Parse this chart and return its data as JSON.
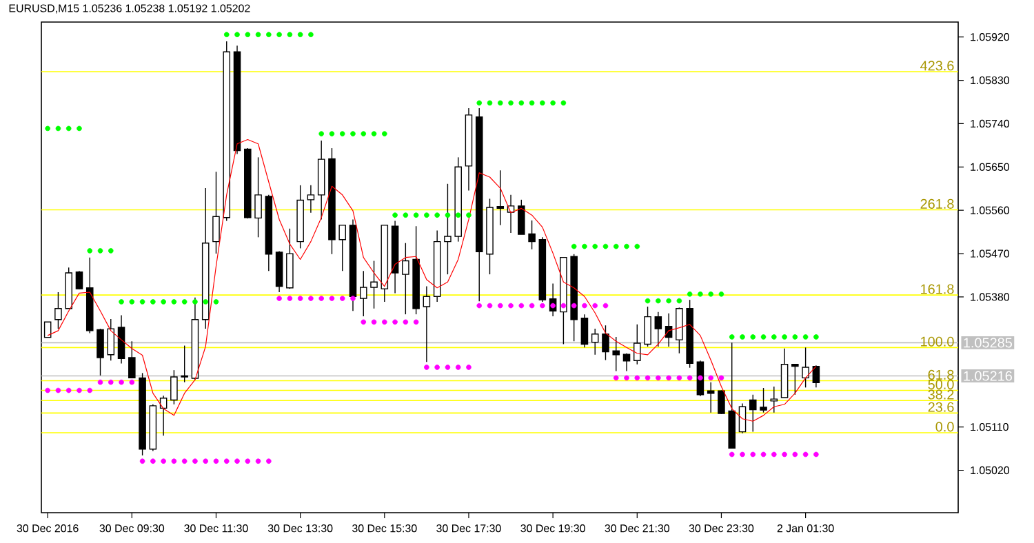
{
  "chart_data": {
    "type": "candlestick",
    "title": "EURUSD,M15 1.05236 1.05238 1.05192 1.05202",
    "categories": [
      "30 Dec 2016",
      null,
      null,
      null,
      null,
      null,
      null,
      null,
      "30 Dec 09:30",
      null,
      null,
      null,
      null,
      null,
      null,
      null,
      "30 Dec 11:30",
      null,
      null,
      null,
      null,
      null,
      null,
      null,
      "30 Dec 13:30",
      null,
      null,
      null,
      null,
      null,
      null,
      null,
      "30 Dec 15:30",
      null,
      null,
      null,
      null,
      null,
      null,
      null,
      "30 Dec 17:30",
      null,
      null,
      null,
      null,
      null,
      null,
      null,
      "30 Dec 19:30",
      null,
      null,
      null,
      null,
      null,
      null,
      null,
      "30 Dec 21:30",
      null,
      null,
      null,
      null,
      null,
      null,
      null,
      "30 Dec 23:30",
      null,
      null,
      null,
      null,
      null,
      null,
      null,
      "2 Jan 01:30",
      null
    ],
    "ohlc": [
      [
        1.05296,
        1.05328,
        1.05296,
        1.05328
      ],
      [
        1.05333,
        1.0539,
        1.05314,
        1.05356
      ],
      [
        1.05356,
        1.05441,
        1.05356,
        1.0543
      ],
      [
        1.05432,
        1.05434,
        1.05396,
        1.05397
      ],
      [
        1.05399,
        1.05462,
        1.05305,
        1.0531
      ],
      [
        1.05312,
        1.05314,
        1.05217,
        1.05254
      ],
      [
        1.0526,
        1.05334,
        1.05248,
        1.05314
      ],
      [
        1.05317,
        1.05342,
        1.05242,
        1.05252
      ],
      [
        1.05254,
        1.05288,
        1.05211,
        1.05212
      ],
      [
        1.05212,
        1.05222,
        1.05051,
        1.05064
      ],
      [
        1.05064,
        1.05157,
        1.0506,
        1.05154
      ],
      [
        1.05149,
        1.05175,
        1.05092,
        1.0517
      ],
      [
        1.05166,
        1.05228,
        1.05157,
        1.05214
      ],
      [
        1.05214,
        1.05279,
        1.05203,
        1.05216
      ],
      [
        1.05211,
        1.05379,
        1.05208,
        1.05333
      ],
      [
        1.05333,
        1.05606,
        1.05314,
        1.05492
      ],
      [
        1.05495,
        1.0564,
        1.0547,
        1.05547
      ],
      [
        1.05545,
        1.05911,
        1.05538,
        1.05889
      ],
      [
        1.05889,
        1.05902,
        1.05677,
        1.05684
      ],
      [
        1.05687,
        1.05689,
        1.05543,
        1.05545
      ],
      [
        1.05544,
        1.0567,
        1.05504,
        1.05592
      ],
      [
        1.05589,
        1.05592,
        1.05434,
        1.05469
      ],
      [
        1.05473,
        1.05475,
        1.0539,
        1.05402
      ],
      [
        1.05399,
        1.05522,
        1.05397,
        1.0547
      ],
      [
        1.05495,
        1.05612,
        1.05481,
        1.05581
      ],
      [
        1.05582,
        1.05612,
        1.05555,
        1.05592
      ],
      [
        1.05592,
        1.05705,
        1.05541,
        1.05666
      ],
      [
        1.05667,
        1.05689,
        1.05469,
        1.05499
      ],
      [
        1.05499,
        1.05529,
        1.05434,
        1.05529
      ],
      [
        1.05529,
        1.05541,
        1.05351,
        1.05381
      ],
      [
        1.05377,
        1.05434,
        1.0534,
        1.054
      ],
      [
        1.054,
        1.05455,
        1.05356,
        1.05411
      ],
      [
        1.05397,
        1.05529,
        1.0537,
        1.05529
      ],
      [
        1.05527,
        1.05538,
        1.05388,
        1.0543
      ],
      [
        1.05427,
        1.05492,
        1.05344,
        1.05455
      ],
      [
        1.05458,
        1.05527,
        1.05344,
        1.05356
      ],
      [
        1.0536,
        1.05402,
        1.05245,
        1.05381
      ],
      [
        1.05381,
        1.05518,
        1.0537,
        1.05495
      ],
      [
        1.05495,
        1.05615,
        1.05427,
        1.05506
      ],
      [
        1.05506,
        1.0567,
        1.05495,
        1.0565
      ],
      [
        1.05652,
        1.05772,
        1.05601,
        1.05758
      ],
      [
        1.05754,
        1.05772,
        1.05371,
        1.05474
      ],
      [
        1.05469,
        1.05584,
        1.05427,
        1.05566
      ],
      [
        1.05568,
        1.05643,
        1.05529,
        1.05564
      ],
      [
        1.05556,
        1.05592,
        1.05513,
        1.05569
      ],
      [
        1.05569,
        1.05582,
        1.0551,
        1.0551
      ],
      [
        1.05511,
        1.05539,
        1.05479,
        1.05495
      ],
      [
        1.05499,
        1.05504,
        1.0537,
        1.05374
      ],
      [
        1.05376,
        1.05408,
        1.0534,
        1.05351
      ],
      [
        1.05349,
        1.05462,
        1.05282,
        1.05462
      ],
      [
        1.05464,
        1.05469,
        1.05288,
        1.05333
      ],
      [
        1.05336,
        1.05344,
        1.05275,
        1.05282
      ],
      [
        1.05286,
        1.05314,
        1.0526,
        1.05303
      ],
      [
        1.05303,
        1.05321,
        1.05249,
        1.05266
      ],
      [
        1.05268,
        1.05297,
        1.05226,
        1.0526
      ],
      [
        1.05261,
        1.05263,
        1.05226,
        1.05247
      ],
      [
        1.05248,
        1.05323,
        1.0524,
        1.05284
      ],
      [
        1.05282,
        1.0536,
        1.05277,
        1.05339
      ],
      [
        1.05339,
        1.05349,
        1.05277,
        1.05314
      ],
      [
        1.05319,
        1.05346,
        1.05277,
        1.05296
      ],
      [
        1.05291,
        1.05358,
        1.05263,
        1.05356
      ],
      [
        1.05356,
        1.05374,
        1.05233,
        1.05242
      ],
      [
        1.05245,
        1.05248,
        1.05174,
        1.05177
      ],
      [
        1.05185,
        1.05203,
        1.0514,
        1.0518
      ],
      [
        1.05185,
        1.05186,
        1.05137,
        1.05138
      ],
      [
        1.05143,
        1.05285,
        1.05066,
        1.05066
      ],
      [
        1.051,
        1.05159,
        1.05097,
        1.05152
      ],
      [
        1.05166,
        1.05177,
        1.051,
        1.05146
      ],
      [
        1.05151,
        1.05191,
        1.0514,
        1.05145
      ],
      [
        1.05164,
        1.05194,
        1.0514,
        1.05168
      ],
      [
        1.05171,
        1.05273,
        1.05171,
        1.0524
      ],
      [
        1.0524,
        1.05241,
        1.05177,
        1.05236
      ],
      [
        1.05212,
        1.05275,
        1.05192,
        1.05234
      ],
      [
        1.05236,
        1.05238,
        1.05192,
        1.05202
      ]
    ],
    "series": [
      {
        "type": "line",
        "color": "#ff0000",
        "values": [
          1.053,
          1.0531,
          1.05351,
          1.05388,
          1.0539,
          1.05351,
          1.0531,
          1.05291,
          1.05273,
          1.05259,
          1.0518,
          1.05148,
          1.05134,
          1.0518,
          1.05208,
          1.05277,
          1.05444,
          1.05592,
          1.05698,
          1.05707,
          1.05698,
          1.05619,
          1.05541,
          1.0549,
          1.05458,
          1.05495,
          1.05545,
          1.0561,
          1.05592,
          1.05559,
          1.05462,
          1.0543,
          1.05402,
          1.05448,
          1.05462,
          1.05464,
          1.05416,
          1.05399,
          1.05411,
          1.05458,
          1.05541,
          1.05638,
          1.05629,
          1.05606,
          1.05555,
          1.05564,
          1.0555,
          1.05525,
          1.05471,
          1.05411,
          1.05399,
          1.05381,
          1.05347,
          1.05305,
          1.05288,
          1.05275,
          1.05263,
          1.0526,
          1.05282,
          1.0531,
          1.05316,
          1.05323,
          1.053,
          1.05249,
          1.05194,
          1.05148,
          1.05127,
          1.05122,
          1.05134,
          1.05152,
          1.05157,
          1.0518,
          1.05212,
          1.05236
        ]
      },
      {
        "type": "scatter",
        "color": "#00ff00",
        "marker": "circle",
        "values": [
          1.0573,
          1.0573,
          1.0573,
          1.0573,
          1.05476,
          1.05476,
          1.05476,
          1.0537,
          1.0537,
          1.0537,
          1.0537,
          1.0537,
          1.0537,
          1.0537,
          1.0537,
          1.0537,
          1.0537,
          1.05925,
          1.05925,
          1.05925,
          1.05925,
          1.05925,
          1.05925,
          1.05925,
          1.05925,
          1.05925,
          1.05719,
          1.05719,
          1.05719,
          1.05719,
          1.05719,
          1.05719,
          1.05719,
          1.0555,
          1.0555,
          1.0555,
          1.0555,
          1.0555,
          1.0555,
          1.0555,
          1.0555,
          1.05783,
          1.05783,
          1.05783,
          1.05783,
          1.05783,
          1.05783,
          1.05783,
          1.05783,
          1.05783,
          1.05485,
          1.05485,
          1.05485,
          1.05485,
          1.05485,
          1.05485,
          1.05485,
          1.05372,
          1.05372,
          1.05372,
          1.05372,
          1.05386,
          1.05386,
          1.05386,
          1.05386,
          1.05297,
          1.05297,
          1.05297,
          1.05297,
          1.05297,
          1.05297,
          1.05297,
          1.05297,
          1.05297
        ]
      },
      {
        "type": "scatter",
        "color": "#ff00ff",
        "marker": "circle",
        "values": [
          1.05186,
          1.05186,
          1.05186,
          1.05186,
          1.05186,
          1.05203,
          1.05203,
          1.05203,
          1.05203,
          1.05039,
          1.05039,
          1.05039,
          1.05039,
          1.05039,
          1.05039,
          1.05039,
          1.05039,
          1.05039,
          1.05039,
          1.05039,
          1.05039,
          1.05039,
          1.05377,
          1.05377,
          1.05377,
          1.05377,
          1.05377,
          1.05377,
          1.05377,
          1.05377,
          1.05328,
          1.05328,
          1.05328,
          1.05328,
          1.05328,
          1.05328,
          1.05234,
          1.05234,
          1.05234,
          1.05234,
          1.05234,
          1.05362,
          1.05362,
          1.05362,
          1.05362,
          1.05362,
          1.05362,
          1.05362,
          1.05362,
          1.05362,
          1.05362,
          1.05362,
          1.05362,
          1.05362,
          1.05212,
          1.05212,
          1.05212,
          1.05212,
          1.05212,
          1.05212,
          1.05212,
          1.05212,
          1.05212,
          1.05212,
          1.05212,
          1.05053,
          1.05053,
          1.05053,
          1.05053,
          1.05053,
          1.05053,
          1.05053,
          1.05053,
          1.05053
        ]
      }
    ],
    "ylim": [
      1.04932,
      1.05951
    ],
    "yticks": [
      {
        "value": 1.0592,
        "label": "1.05920"
      },
      {
        "value": 1.0583,
        "label": "1.05830"
      },
      {
        "value": 1.0574,
        "label": "1.05740"
      },
      {
        "value": 1.0565,
        "label": "1.05650"
      },
      {
        "value": 1.0556,
        "label": "1.05560"
      },
      {
        "value": 1.0547,
        "label": "1.05470"
      },
      {
        "value": 1.0538,
        "label": "1.05380"
      },
      {
        "value": 1.0511,
        "label": "1.05110"
      },
      {
        "value": 1.0502,
        "label": "1.05020"
      }
    ],
    "ref_lines": [
      {
        "axis": "y",
        "value": 1.05848,
        "color": "#ffff00"
      },
      {
        "axis": "y",
        "value": 1.05561,
        "color": "#ffff00"
      },
      {
        "axis": "y",
        "value": 1.05384,
        "color": "#ffff00"
      },
      {
        "axis": "y",
        "value": 1.05275,
        "color": "#ffff00"
      },
      {
        "axis": "y",
        "value": 1.05206,
        "color": "#ffff00"
      },
      {
        "axis": "y",
        "value": 1.05186,
        "color": "#ffff00"
      },
      {
        "axis": "y",
        "value": 1.05165,
        "color": "#ffff00"
      },
      {
        "axis": "y",
        "value": 1.05139,
        "color": "#ffff00"
      },
      {
        "axis": "y",
        "value": 1.05098,
        "color": "#ffff00"
      },
      {
        "axis": "y",
        "value": 1.05285,
        "label": "1.05285",
        "color": "#c0c0c0"
      },
      {
        "axis": "y",
        "value": 1.05216,
        "label": "1.05216",
        "color": "#c0c0c0"
      }
    ],
    "annotations": [
      {
        "text": "423.6",
        "y": 1.05848
      },
      {
        "text": "261.8",
        "y": 1.05561
      },
      {
        "text": "161.8",
        "y": 1.05384
      },
      {
        "text": "100.0",
        "y": 1.05275
      },
      {
        "text": "61.8",
        "y": 1.05206
      },
      {
        "text": "50.0",
        "y": 1.05186
      },
      {
        "text": "38.2",
        "y": 1.05165
      },
      {
        "text": "23.6",
        "y": 1.05139
      },
      {
        "text": "0.0",
        "y": 1.05098
      }
    ]
  }
}
